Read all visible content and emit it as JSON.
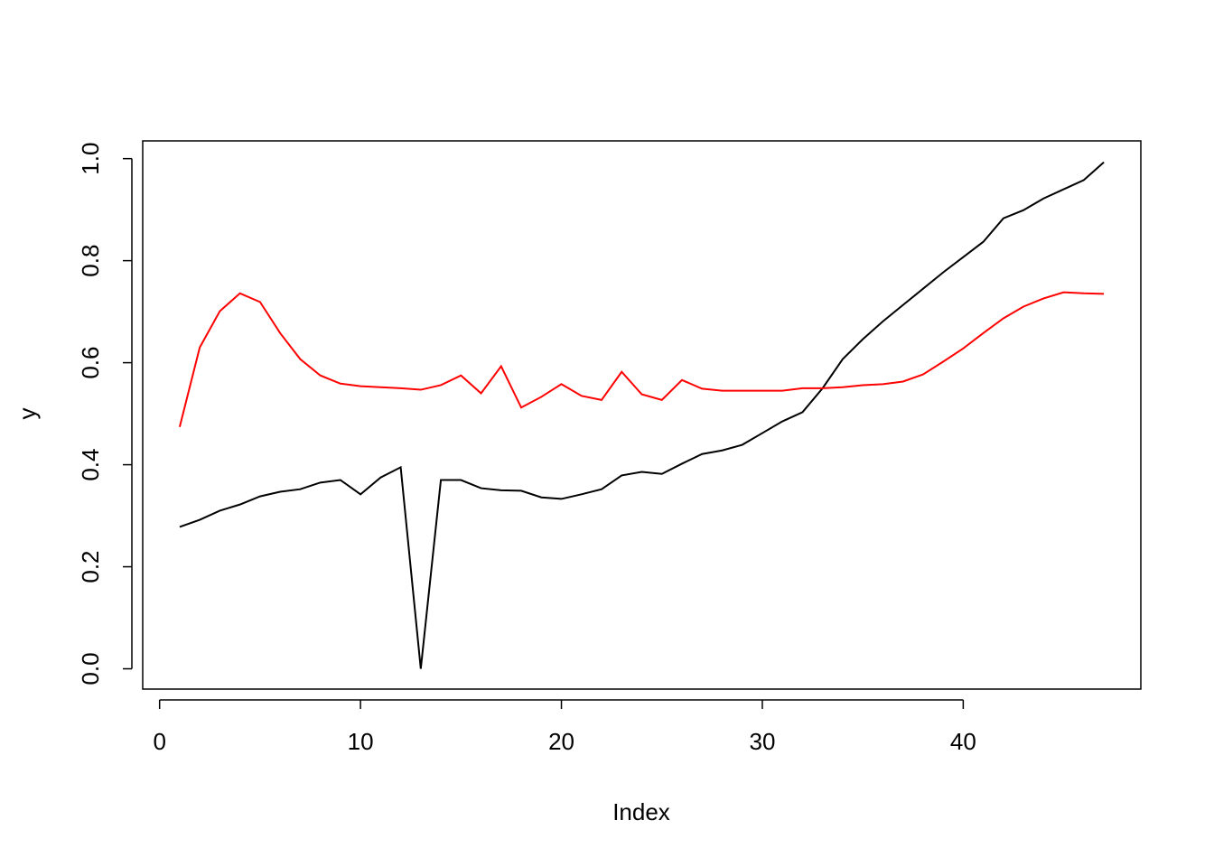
{
  "chart_data": {
    "type": "line",
    "x_label": "Index",
    "y_label": "y",
    "x": [
      1,
      2,
      3,
      4,
      5,
      6,
      7,
      8,
      9,
      10,
      11,
      12,
      13,
      14,
      15,
      16,
      17,
      18,
      19,
      20,
      21,
      22,
      23,
      24,
      25,
      26,
      27,
      28,
      29,
      30,
      31,
      32,
      33,
      34,
      35,
      36,
      37,
      38,
      39,
      40,
      41,
      42,
      43,
      44,
      45,
      46,
      47
    ],
    "series": [
      {
        "color": "#000000",
        "values": [
          0.278,
          0.292,
          0.31,
          0.322,
          0.338,
          0.347,
          0.352,
          0.365,
          0.37,
          0.342,
          0.375,
          0.395,
          0.0,
          0.37,
          0.37,
          0.354,
          0.35,
          0.349,
          0.336,
          0.333,
          0.342,
          0.352,
          0.379,
          0.386,
          0.382,
          0.402,
          0.421,
          0.428,
          0.439,
          0.462,
          0.485,
          0.503,
          0.55,
          0.607,
          0.646,
          0.681,
          0.713,
          0.745,
          0.777,
          0.807,
          0.837,
          0.883,
          0.899,
          0.922,
          0.94,
          0.958,
          0.993
        ]
      },
      {
        "color": "#ff0000",
        "values": [
          0.474,
          0.63,
          0.701,
          0.736,
          0.719,
          0.658,
          0.607,
          0.575,
          0.559,
          0.554,
          0.552,
          0.55,
          0.547,
          0.556,
          0.575,
          0.54,
          0.593,
          0.512,
          0.533,
          0.558,
          0.535,
          0.527,
          0.582,
          0.538,
          0.527,
          0.566,
          0.549,
          0.545,
          0.545,
          0.545,
          0.545,
          0.55,
          0.55,
          0.552,
          0.556,
          0.558,
          0.563,
          0.577,
          0.602,
          0.628,
          0.658,
          0.687,
          0.71,
          0.726,
          0.738,
          0.736,
          0.735
        ]
      }
    ],
    "xlim": [
      -0.84,
      48.84
    ],
    "ylim": [
      -0.0398,
      1.0348
    ],
    "xticks": [
      0,
      10,
      20,
      30,
      40
    ],
    "yticks": [
      {
        "value": 0,
        "label": "0.0"
      },
      0.2,
      0.4,
      0.6,
      0.8,
      {
        "value": 1,
        "label": "1.0"
      }
    ]
  }
}
